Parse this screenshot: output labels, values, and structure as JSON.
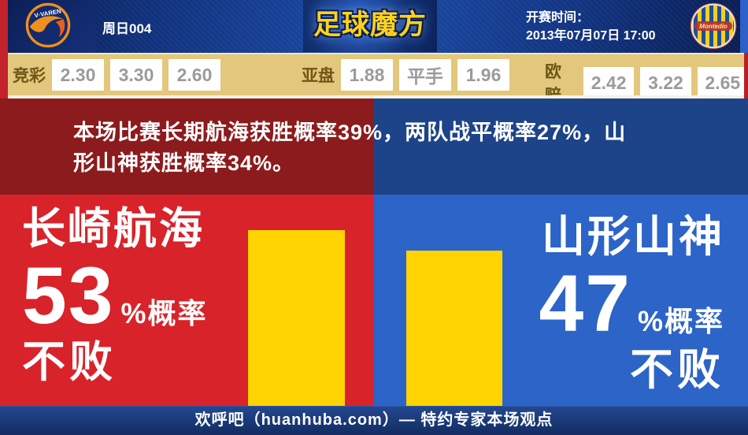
{
  "header": {
    "match_code": "周日004",
    "brand": "足球魔方",
    "kickoff_label": "开赛时间：",
    "kickoff_datetime": "2013年07月07日 17:00",
    "home_crest_text": "V·VAREN",
    "away_crest_text": "Montedio"
  },
  "odds": {
    "groups": [
      {
        "label": "竞彩",
        "values": [
          "2.30",
          "3.30",
          "2.60"
        ]
      },
      {
        "label": "亚盘",
        "values": [
          "1.88",
          "平手",
          "1.96"
        ]
      },
      {
        "label": "欧赔",
        "values": [
          "2.42",
          "3.22",
          "2.65"
        ]
      }
    ]
  },
  "summary": {
    "text": "本场比赛长期航海获胜概率39%，两队战平概率27%，山形山神获胜概率34%。"
  },
  "home": {
    "name": "长崎航海",
    "percent": "53",
    "percent_suffix": "%概率",
    "outcome": "不败"
  },
  "away": {
    "name": "山形山神",
    "percent": "47",
    "percent_suffix": "%概率",
    "outcome": "不败"
  },
  "footer": {
    "text": "欢呼吧（huanhuba.com）— 特约专家本场观点"
  },
  "colors": {
    "home_red": "#d8232a",
    "away_blue": "#2c64c8",
    "band_maroon": "#8c1b1d",
    "band_blue": "#1d4389",
    "bar_yellow": "#ffd400",
    "odds_bg": "#e2c77c",
    "header_navy": "#11337f",
    "footer_navy": "#122c61",
    "brand_gold": "#ffd21a"
  },
  "chart_data": {
    "type": "bar",
    "categories": [
      "长崎航海",
      "山形山神"
    ],
    "values": [
      53,
      47
    ],
    "unit": "%",
    "label": "不败概率",
    "bar_color": "#ffd400",
    "related_probabilities": {
      "home_win_percent": 39,
      "draw_percent": 27,
      "away_win_percent": 34
    }
  }
}
